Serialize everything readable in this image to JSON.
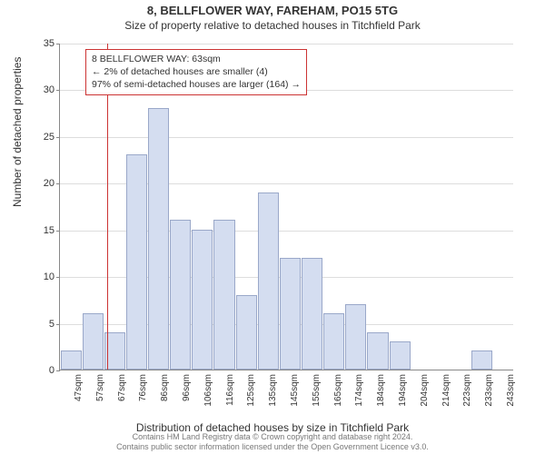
{
  "title": {
    "super": "8, BELLFLOWER WAY, FAREHAM, PO15 5TG",
    "sub": "Size of property relative to detached houses in Titchfield Park",
    "fontsize_super": 13,
    "fontsize_sub": 12
  },
  "chart": {
    "type": "histogram",
    "background_color": "#ffffff",
    "grid_color": "#dddddd",
    "axis_color": "#888888",
    "bar_fill": "#d4ddf0",
    "bar_border": "#9aa8c9",
    "ylim": [
      0,
      35
    ],
    "ytick_step": 5,
    "yticks": [
      0,
      5,
      10,
      15,
      20,
      25,
      30,
      35
    ],
    "y_axis_title": "Number of detached properties",
    "x_axis_title": "Distribution of detached houses by size in Titchfield Park",
    "categories": [
      "47sqm",
      "57sqm",
      "67sqm",
      "76sqm",
      "86sqm",
      "96sqm",
      "106sqm",
      "116sqm",
      "125sqm",
      "135sqm",
      "145sqm",
      "155sqm",
      "165sqm",
      "174sqm",
      "184sqm",
      "194sqm",
      "204sqm",
      "214sqm",
      "223sqm",
      "233sqm",
      "243sqm"
    ],
    "values": [
      2,
      6,
      4,
      23,
      28,
      16,
      15,
      16,
      8,
      19,
      12,
      12,
      6,
      7,
      4,
      3,
      0,
      0,
      0,
      2,
      0
    ],
    "label_fontsize": 11,
    "tick_fontsize": 10
  },
  "marker": {
    "color": "#cc3333",
    "position_category_index": 1.7,
    "annotation": {
      "line1": "8 BELLFLOWER WAY: 63sqm",
      "line2": "← 2% of detached houses are smaller (4)",
      "line3": "97% of semi-detached houses are larger (164) →",
      "border_color": "#cc3333",
      "background": "#ffffff",
      "fontsize": 10.5
    }
  },
  "footer": {
    "line1": "Contains HM Land Registry data © Crown copyright and database right 2024.",
    "line2": "Contains public sector information licensed under the Open Government Licence v3.0.",
    "color": "#777777",
    "fontsize": 9
  }
}
